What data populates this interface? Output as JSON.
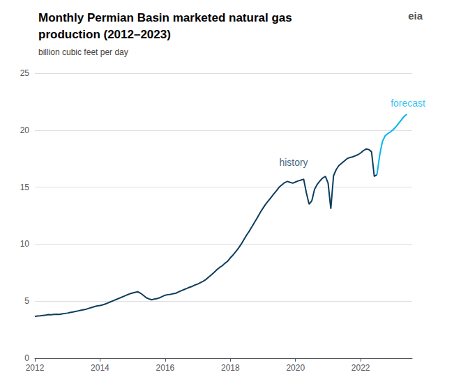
{
  "chart_data": {
    "type": "line",
    "title": "Monthly Permian Basin marketed natural gas\nproduction (2012–2023)",
    "subtitle": "billion cubic feet per day",
    "xlim": [
      2012.0,
      2023.58
    ],
    "xticks": [
      2012,
      2014,
      2016,
      2018,
      2020,
      2022
    ],
    "ylim": [
      0,
      25
    ],
    "yticks": [
      0,
      5,
      10,
      15,
      20,
      25
    ],
    "grid": true,
    "series": [
      {
        "color": "#0d3d5c",
        "x": [
          2012.0,
          2012.083,
          2012.167,
          2012.25,
          2012.333,
          2012.417,
          2012.5,
          2012.583,
          2012.667,
          2012.75,
          2012.833,
          2012.917,
          2013.0,
          2013.083,
          2013.167,
          2013.25,
          2013.333,
          2013.417,
          2013.5,
          2013.583,
          2013.667,
          2013.75,
          2013.833,
          2013.917,
          2014.0,
          2014.083,
          2014.167,
          2014.25,
          2014.333,
          2014.417,
          2014.5,
          2014.583,
          2014.667,
          2014.75,
          2014.833,
          2014.917,
          2015.0,
          2015.083,
          2015.167,
          2015.25,
          2015.333,
          2015.417,
          2015.5,
          2015.583,
          2015.667,
          2015.75,
          2015.833,
          2015.917,
          2016.0,
          2016.083,
          2016.167,
          2016.25,
          2016.333,
          2016.417,
          2016.5,
          2016.583,
          2016.667,
          2016.75,
          2016.833,
          2016.917,
          2017.0,
          2017.083,
          2017.167,
          2017.25,
          2017.333,
          2017.417,
          2017.5,
          2017.583,
          2017.667,
          2017.75,
          2017.833,
          2017.917,
          2018.0,
          2018.083,
          2018.167,
          2018.25,
          2018.333,
          2018.417,
          2018.5,
          2018.583,
          2018.667,
          2018.75,
          2018.833,
          2018.917,
          2019.0,
          2019.083,
          2019.167,
          2019.25,
          2019.333,
          2019.417,
          2019.5,
          2019.583,
          2019.667,
          2019.75,
          2019.833,
          2019.917,
          2020.0,
          2020.083,
          2020.167,
          2020.25,
          2020.333,
          2020.417,
          2020.5,
          2020.583,
          2020.667,
          2020.75,
          2020.833,
          2020.917,
          2021.0,
          2021.083,
          2021.167,
          2021.25,
          2021.333,
          2021.417,
          2021.5,
          2021.583,
          2021.667,
          2021.75,
          2021.833,
          2021.917,
          2022.0,
          2022.083,
          2022.167,
          2022.25,
          2022.333,
          2022.417,
          2022.5
        ],
        "values": [
          3.65,
          3.7,
          3.72,
          3.75,
          3.78,
          3.82,
          3.8,
          3.83,
          3.85,
          3.83,
          3.88,
          3.92,
          3.95,
          4.0,
          4.05,
          4.1,
          4.15,
          4.2,
          4.25,
          4.3,
          4.38,
          4.45,
          4.52,
          4.58,
          4.62,
          4.68,
          4.75,
          4.85,
          4.95,
          5.05,
          5.15,
          5.25,
          5.35,
          5.45,
          5.55,
          5.65,
          5.72,
          5.78,
          5.82,
          5.68,
          5.5,
          5.3,
          5.2,
          5.12,
          5.18,
          5.22,
          5.3,
          5.42,
          5.52,
          5.57,
          5.6,
          5.65,
          5.7,
          5.82,
          5.92,
          6.02,
          6.12,
          6.22,
          6.3,
          6.42,
          6.5,
          6.62,
          6.75,
          6.9,
          7.1,
          7.3,
          7.52,
          7.75,
          7.95,
          8.1,
          8.32,
          8.5,
          8.8,
          9.05,
          9.35,
          9.65,
          10.0,
          10.4,
          10.8,
          11.15,
          11.55,
          11.95,
          12.35,
          12.78,
          13.15,
          13.5,
          13.8,
          14.1,
          14.4,
          14.7,
          15.0,
          15.2,
          15.4,
          15.5,
          15.42,
          15.35,
          15.45,
          15.55,
          15.62,
          15.7,
          14.5,
          13.5,
          13.8,
          14.8,
          15.25,
          15.55,
          15.8,
          15.95,
          15.35,
          13.1,
          16.0,
          16.55,
          16.9,
          17.1,
          17.3,
          17.5,
          17.6,
          17.65,
          17.75,
          17.85,
          18.0,
          18.2,
          18.35,
          18.3,
          18.1,
          15.95,
          16.1
        ]
      },
      {
        "color": "#00b4f0",
        "x": [
          2022.5,
          2022.583,
          2022.667,
          2022.75,
          2022.833,
          2022.917,
          2023.0,
          2023.083,
          2023.167,
          2023.25,
          2023.333,
          2023.417
        ],
        "values": [
          16.1,
          17.8,
          19.0,
          19.5,
          19.7,
          19.85,
          20.05,
          20.3,
          20.6,
          20.9,
          21.2,
          21.4
        ]
      }
    ],
    "annotations": [
      {
        "text": "history",
        "x": 2019.5,
        "y": 17.2,
        "color": "#0d3d5c"
      },
      {
        "text": "forecast",
        "x": 2022.92,
        "y": 22.4,
        "color": "#00b4f0"
      },
      {
        "text": "eia"
      }
    ]
  }
}
